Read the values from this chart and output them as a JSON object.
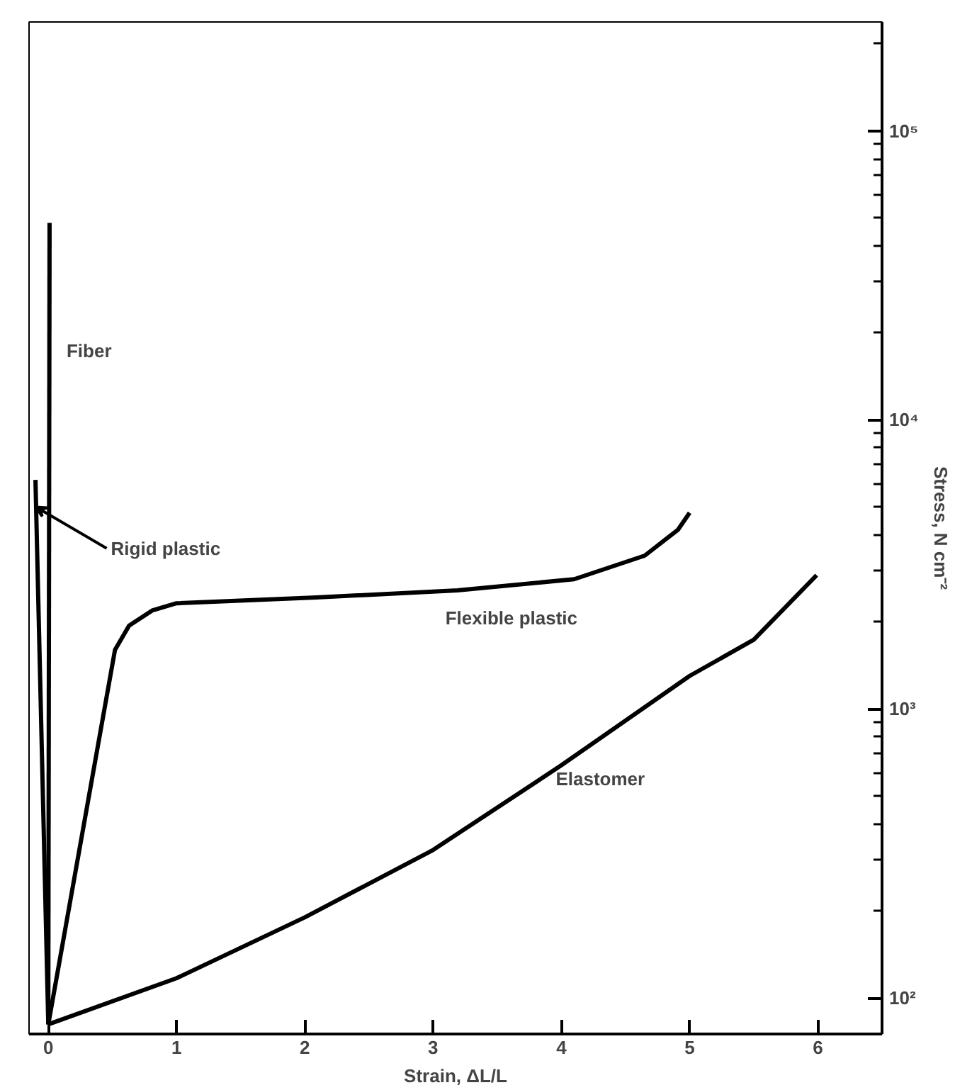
{
  "chart_data": {
    "type": "line",
    "xlabel": "Strain, ΔL/L",
    "ylabel": "Stress, N cm⁻²",
    "log": "y",
    "grid": false,
    "legend": false,
    "marker": "none",
    "line_style": "solid",
    "xlim": [
      -0.15,
      6.5
    ],
    "xticks": [
      0,
      1,
      2,
      3,
      4,
      5,
      6
    ],
    "ylim": [
      75,
      238000
    ],
    "yticks": [
      {
        "value": 100,
        "label": "10²"
      },
      {
        "value": 1000,
        "label": "10³"
      },
      {
        "value": 10000,
        "label": "10⁴"
      },
      {
        "value": 100000,
        "label": "10⁵"
      }
    ],
    "series": [
      {
        "name": "Fiber",
        "color": "#000000",
        "x": [
          0,
          0.01
        ],
        "values": [
          81,
          48000
        ]
      },
      {
        "name": "Rigid plastic",
        "color": "#000000",
        "x": [
          0,
          -0.1
        ],
        "values": [
          81,
          6200
        ]
      },
      {
        "name": "Flexible plastic",
        "color": "#000000",
        "x": [
          0,
          0.52,
          0.63,
          0.81,
          1.0,
          2.09,
          3.19,
          4.1,
          4.65,
          4.91,
          5.0
        ],
        "values": [
          81,
          1600,
          1940,
          2190,
          2320,
          2430,
          2570,
          2810,
          3390,
          4170,
          4770
        ]
      },
      {
        "name": "Elastomer",
        "color": "#000000",
        "x": [
          0,
          1.0,
          2.0,
          3.0,
          4.0,
          5.0,
          5.5,
          5.99
        ],
        "values": [
          81,
          117,
          190,
          325,
          638,
          1300,
          1735,
          2900
        ]
      }
    ]
  }
}
